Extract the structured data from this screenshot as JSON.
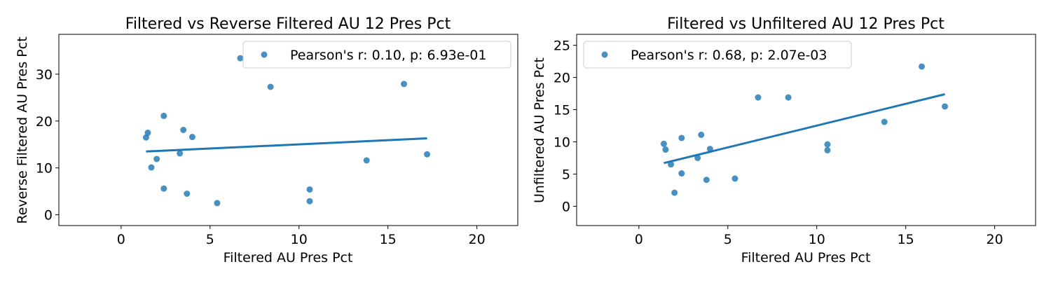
{
  "chart_data": [
    {
      "type": "scatter",
      "title": "Filtered vs Reverse Filtered AU 12 Pres Pct",
      "xlabel": "Filtered AU Pres Pct",
      "ylabel": "Reverse Filtered AU Pres Pct",
      "xlim": [
        -3.5,
        22.3
      ],
      "ylim": [
        -2.3,
        38.5
      ],
      "xticks": [
        0,
        5,
        10,
        15,
        20
      ],
      "yticks": [
        0,
        10,
        20,
        30
      ],
      "grid": false,
      "legend": {
        "label": "Pearson's r: 0.10, p: 6.93e-01",
        "position": "upper right"
      },
      "series": [
        {
          "label": "Pearson's r: 0.10, p: 6.93e-01",
          "color": "#1f77b4",
          "points": [
            [
              1.4,
              16.5
            ],
            [
              1.5,
              17.5
            ],
            [
              1.7,
              10.1
            ],
            [
              2.0,
              11.9
            ],
            [
              2.4,
              21.1
            ],
            [
              2.4,
              5.6
            ],
            [
              3.3,
              13.1
            ],
            [
              3.5,
              18.1
            ],
            [
              3.7,
              4.5
            ],
            [
              4.0,
              16.6
            ],
            [
              5.4,
              2.5
            ],
            [
              6.7,
              33.4
            ],
            [
              8.4,
              27.3
            ],
            [
              10.6,
              5.4
            ],
            [
              10.6,
              2.9
            ],
            [
              13.8,
              11.6
            ],
            [
              15.9,
              27.9
            ],
            [
              17.2,
              12.9
            ]
          ],
          "fit": {
            "x": [
              1.4,
              17.2
            ],
            "y": [
              13.5,
              16.3
            ]
          }
        }
      ]
    },
    {
      "type": "scatter",
      "title": "Filtered vs Unfiltered AU 12 Pres Pct",
      "xlabel": "Filtered AU Pres Pct",
      "ylabel": "Unfiltered AU Pres Pct",
      "xlim": [
        -3.5,
        22.3
      ],
      "ylim": [
        -3.0,
        26.7
      ],
      "xticks": [
        0,
        5,
        10,
        15,
        20
      ],
      "yticks": [
        0,
        5,
        10,
        15,
        20,
        25
      ],
      "grid": false,
      "legend": {
        "label": "Pearson's r: 0.68, p: 2.07e-03",
        "position": "upper left"
      },
      "series": [
        {
          "label": "Pearson's r: 0.68, p: 2.07e-03",
          "color": "#1f77b4",
          "points": [
            [
              1.4,
              9.7
            ],
            [
              1.5,
              8.8
            ],
            [
              1.8,
              6.5
            ],
            [
              2.0,
              2.1
            ],
            [
              2.4,
              10.6
            ],
            [
              2.4,
              5.1
            ],
            [
              3.3,
              7.5
            ],
            [
              3.5,
              11.1
            ],
            [
              3.8,
              4.1
            ],
            [
              4.0,
              8.9
            ],
            [
              5.4,
              4.3
            ],
            [
              6.7,
              16.9
            ],
            [
              8.4,
              16.9
            ],
            [
              10.6,
              9.6
            ],
            [
              10.6,
              8.7
            ],
            [
              13.8,
              13.1
            ],
            [
              15.9,
              21.7
            ],
            [
              17.2,
              15.5
            ]
          ],
          "fit": {
            "x": [
              1.4,
              17.2
            ],
            "y": [
              6.7,
              17.4
            ]
          }
        }
      ]
    }
  ]
}
